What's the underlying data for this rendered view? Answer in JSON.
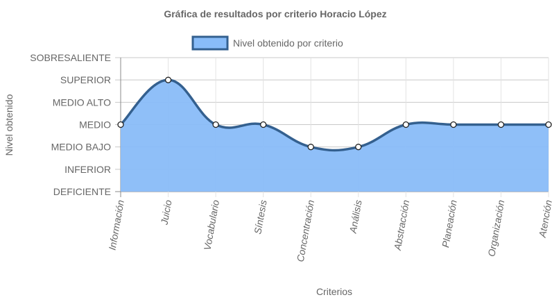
{
  "chart_data": {
    "type": "area",
    "title": "Gráfica de resultados por criterio Horacio López",
    "xlabel": "Criterios",
    "ylabel": "Nivel obtenido",
    "y_levels": [
      "DEFICIENTE",
      "INFERIOR",
      "MEDIO BAJO",
      "MEDIO",
      "MEDIO ALTO",
      "SUPERIOR",
      "SOBRESALIENTE"
    ],
    "categories": [
      "Información",
      "Juicio",
      "Vocabulario",
      "Síntesis",
      "Concentración",
      "Análisis",
      "Abstracción",
      "Planeación",
      "Organización",
      "Atención"
    ],
    "series": [
      {
        "name": "Nivel obtenido por criterio",
        "values": [
          3,
          5,
          3,
          3,
          2,
          2,
          3,
          3,
          3,
          3
        ],
        "fill_color": "#89bcf8",
        "line_color": "#34608f"
      }
    ],
    "ylim": [
      0,
      6
    ],
    "grid": true,
    "legend": "top"
  }
}
